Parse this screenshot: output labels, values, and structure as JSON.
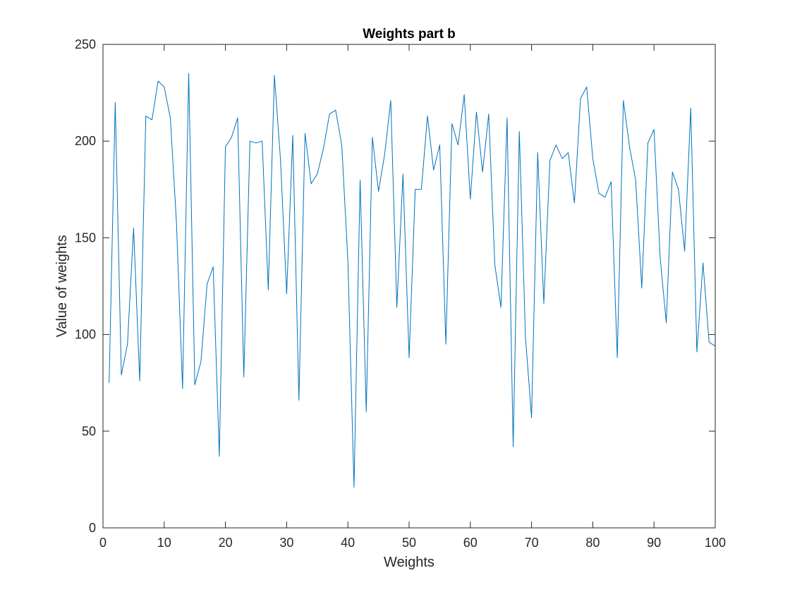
{
  "chart_data": {
    "type": "line",
    "title": "Weights part b",
    "xlabel": "Weights",
    "ylabel": "Value of weights",
    "xlim": [
      0,
      100
    ],
    "ylim": [
      0,
      250
    ],
    "xticks": [
      0,
      10,
      20,
      30,
      40,
      50,
      60,
      70,
      80,
      90,
      100
    ],
    "yticks": [
      0,
      50,
      100,
      150,
      200,
      250
    ],
    "grid": false,
    "box": true,
    "line_color": "#0072BD",
    "series": [
      {
        "x": [
          1,
          2,
          3,
          4,
          5,
          6,
          7,
          8,
          9,
          10,
          11,
          12,
          13,
          14,
          15,
          16,
          17,
          18,
          19,
          20,
          21,
          22,
          23,
          24,
          25,
          26,
          27,
          28,
          29,
          30,
          31,
          32,
          33,
          34,
          35,
          36,
          37,
          38,
          39,
          40,
          41,
          42,
          43,
          44,
          45,
          46,
          47,
          48,
          49,
          50,
          51,
          52,
          53,
          54,
          55,
          56,
          57,
          58,
          59,
          60,
          61,
          62,
          63,
          64,
          65,
          66,
          67,
          68,
          69,
          70,
          71,
          72,
          73,
          74,
          75,
          76,
          77,
          78,
          79,
          80,
          81,
          82,
          83,
          84,
          85,
          86,
          87,
          88,
          89,
          90,
          91,
          92,
          93,
          94,
          95,
          96,
          97,
          98,
          99,
          100
        ],
        "y": [
          75,
          220,
          79,
          95,
          155,
          76,
          213,
          211,
          231,
          228,
          212,
          158,
          72,
          235,
          74,
          86,
          126,
          135,
          37,
          197,
          202,
          212,
          78,
          200,
          199,
          200,
          123,
          234,
          190,
          121,
          203,
          66,
          204,
          178,
          183,
          196,
          214,
          216,
          198,
          138,
          21,
          180,
          60,
          202,
          174,
          193,
          221,
          114,
          183,
          88,
          175,
          175,
          213,
          185,
          198,
          95,
          209,
          198,
          224,
          170,
          215,
          184,
          214,
          136,
          114,
          212,
          42,
          205,
          99,
          57,
          194,
          116,
          190,
          198,
          191,
          194,
          168,
          222,
          228,
          191,
          173,
          171,
          179,
          88,
          221,
          197,
          180,
          124,
          199,
          206,
          140,
          106,
          184,
          175,
          143,
          217,
          91,
          137,
          96,
          94
        ]
      }
    ]
  }
}
